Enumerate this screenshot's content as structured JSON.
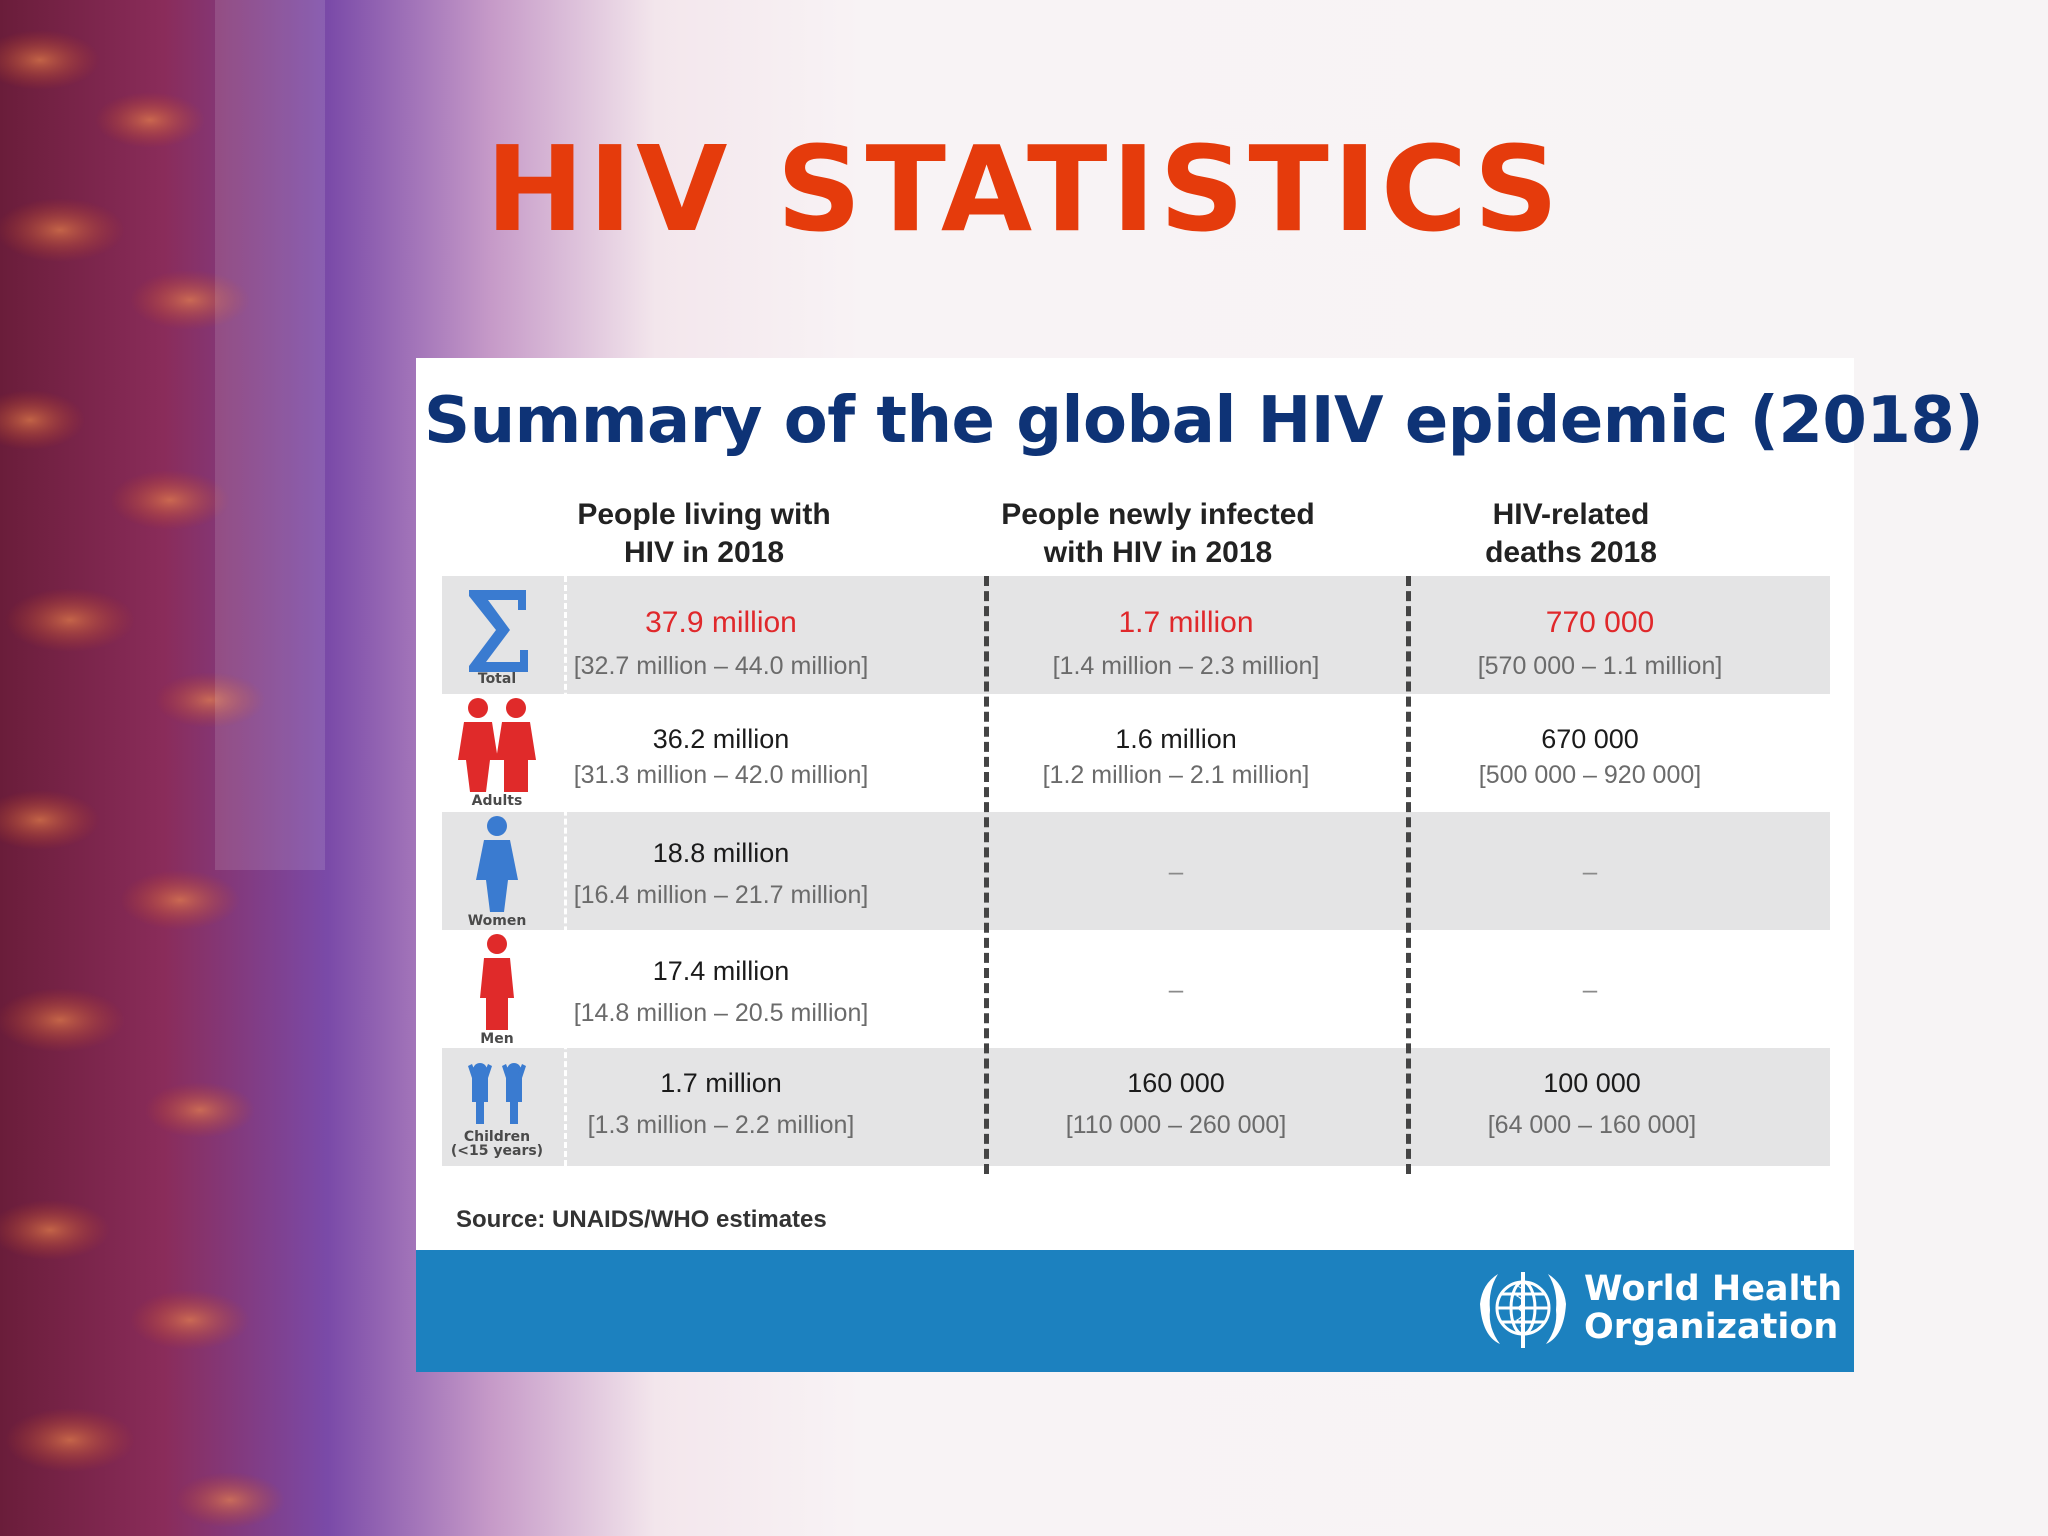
{
  "slide": {
    "title": "HIV STATISTICS"
  },
  "panel": {
    "heading": "Summary of the global HIV epidemic (2018)",
    "columns": [
      {
        "line1": "People living with",
        "line2": "HIV in 2018"
      },
      {
        "line1": "People newly infected",
        "line2": "with HIV in 2018"
      },
      {
        "line1": "HIV-related",
        "line2": "deaths 2018"
      }
    ],
    "rows": [
      {
        "group": "Total",
        "icon": "sigma-icon",
        "living": {
          "value": "37.9 million",
          "range": "[32.7 million – 44.0 million]"
        },
        "new": {
          "value": "1.7 million",
          "range": "[1.4 million – 2.3 million]"
        },
        "deaths": {
          "value": "770 000",
          "range": "[570 000 – 1.1 million]"
        }
      },
      {
        "group": "Adults",
        "icon": "adults-icon",
        "living": {
          "value": "36.2 million",
          "range": "[31.3 million – 42.0 million]"
        },
        "new": {
          "value": "1.6 million",
          "range": "[1.2 million – 2.1 million]"
        },
        "deaths": {
          "value": "670 000",
          "range": "[500 000 – 920 000]"
        }
      },
      {
        "group": "Women",
        "icon": "woman-icon",
        "living": {
          "value": "18.8 million",
          "range": "[16.4 million – 21.7 million]"
        },
        "new": {
          "value": "–"
        },
        "deaths": {
          "value": "–"
        }
      },
      {
        "group": "Men",
        "icon": "man-icon",
        "living": {
          "value": "17.4 million",
          "range": "[14.8 million – 20.5 million]"
        },
        "new": {
          "value": "–"
        },
        "deaths": {
          "value": "–"
        }
      },
      {
        "group": "Children",
        "group_note": "(<15 years)",
        "icon": "children-icon",
        "living": {
          "value": "1.7 million",
          "range": "[1.3 million – 2.2 million]"
        },
        "new": {
          "value": "160 000",
          "range": "[110 000 – 260 000]"
        },
        "deaths": {
          "value": "100 000",
          "range": "[64 000 – 160 000]"
        }
      }
    ],
    "source": "Source: UNAIDS/WHO  estimates",
    "footer": {
      "org_line1": "World Health",
      "org_line2": "Organization",
      "emblem": "who-emblem-icon"
    }
  },
  "colors": {
    "title": "#e53b0c",
    "heading": "#0e3376",
    "highlight": "#e0282b",
    "footer": "#1c81bf",
    "icon_blue": "#3a7bd0",
    "icon_red": "#e02a2a"
  }
}
